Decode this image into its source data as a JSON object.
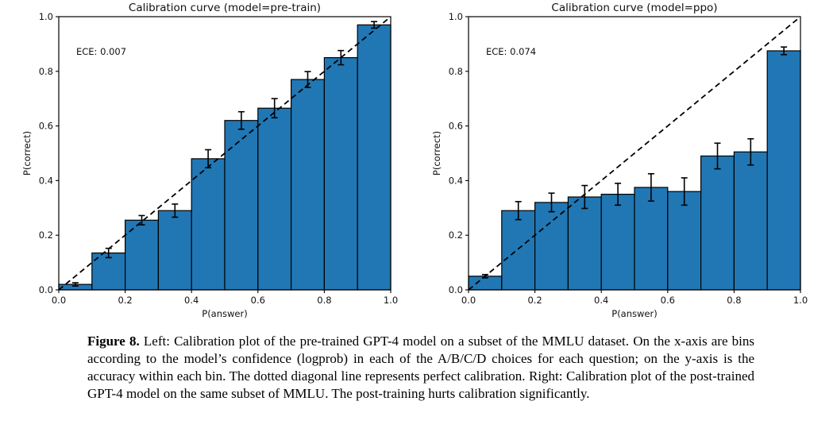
{
  "colors": {
    "bar_fill": "#2077b4",
    "bar_edge": "#000000",
    "errorbar": "#000000",
    "diagonal": "#000000",
    "axis": "#000000",
    "text": "#111111",
    "background": "#ffffff"
  },
  "chart_data": [
    {
      "type": "bar",
      "title": "Calibration curve (model=pre-train)",
      "annotation": "ECE: 0.007",
      "xlabel": "P(answer)",
      "ylabel": "P(correct)",
      "xlim": [
        0.0,
        1.0
      ],
      "ylim": [
        0.0,
        1.0
      ],
      "grid": false,
      "diagonal_line": "dashed y=x perfect calibration",
      "xticks": [
        "0.0",
        "0.2",
        "0.4",
        "0.6",
        "0.8",
        "1.0"
      ],
      "yticks": [
        "0.0",
        "0.2",
        "0.4",
        "0.6",
        "0.8",
        "1.0"
      ],
      "bin_edges": [
        0.0,
        0.1,
        0.2,
        0.3,
        0.4,
        0.5,
        0.6,
        0.7,
        0.8,
        0.9,
        1.0
      ],
      "values": [
        0.02,
        0.135,
        0.255,
        0.29,
        0.48,
        0.62,
        0.665,
        0.77,
        0.85,
        0.97
      ],
      "error_bars": [
        0.006,
        0.017,
        0.017,
        0.024,
        0.033,
        0.032,
        0.035,
        0.029,
        0.026,
        0.012
      ]
    },
    {
      "type": "bar",
      "title": "Calibration curve (model=ppo)",
      "annotation": "ECE: 0.074",
      "xlabel": "P(answer)",
      "ylabel": "P(correct)",
      "xlim": [
        0.0,
        1.0
      ],
      "ylim": [
        0.0,
        1.0
      ],
      "grid": false,
      "diagonal_line": "dashed y=x perfect calibration",
      "xticks": [
        "0.0",
        "0.2",
        "0.4",
        "0.6",
        "0.8",
        "1.0"
      ],
      "yticks": [
        "0.0",
        "0.2",
        "0.4",
        "0.6",
        "0.8",
        "1.0"
      ],
      "bin_edges": [
        0.0,
        0.1,
        0.2,
        0.3,
        0.4,
        0.5,
        0.6,
        0.7,
        0.8,
        0.9,
        1.0
      ],
      "values": [
        0.05,
        0.29,
        0.32,
        0.34,
        0.35,
        0.375,
        0.36,
        0.49,
        0.505,
        0.875
      ],
      "error_bars": [
        0.006,
        0.033,
        0.034,
        0.042,
        0.04,
        0.05,
        0.05,
        0.047,
        0.048,
        0.014
      ]
    }
  ],
  "caption": {
    "label": "Figure 8.",
    "text": " Left: Calibration plot of the pre-trained GPT-4 model on a subset of the MMLU dataset. On the x-axis are bins according to the model’s confidence (logprob) in each of the A/B/C/D choices for each question; on the y-axis is the accuracy within each bin. The dotted diagonal line represents perfect calibration. Right: Calibration plot of the post-trained GPT-4 model on the same subset of MMLU. The post-training hurts calibration significantly."
  }
}
